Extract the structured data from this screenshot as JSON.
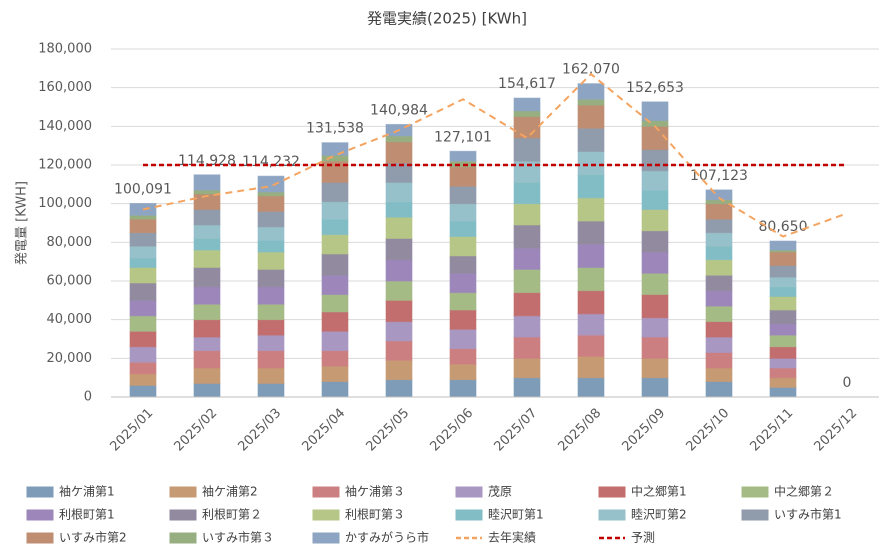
{
  "chart_data": {
    "type": "stacked-bar",
    "title": "発電実績(2025) [KWh]",
    "y_label": "発電量 [KWH]",
    "categories": [
      "2025/01",
      "2025/02",
      "2025/03",
      "2025/04",
      "2025/05",
      "2025/06",
      "2025/07",
      "2025/08",
      "2025/09",
      "2025/10",
      "2025/11",
      "2025/12"
    ],
    "ylim": [
      0,
      180000
    ],
    "yticks": [
      0,
      {
        "value": 20000,
        "label": "20,000"
      },
      {
        "value": 40000,
        "label": "40,000"
      },
      {
        "value": 60000,
        "label": "60,000"
      },
      {
        "value": 80000,
        "label": "80,000"
      },
      {
        "value": 100000,
        "label": "100,000"
      },
      {
        "value": 120000,
        "label": "120,000"
      },
      {
        "value": 140000,
        "label": "140,000"
      },
      {
        "value": 160000,
        "label": "160,000"
      },
      {
        "value": 180000,
        "label": "180,000"
      }
    ],
    "grid": true,
    "series": [
      {
        "name": "袖ケ浦第1",
        "color": "#9dc3e6",
        "values": [
          6000,
          7000,
          7000,
          8000,
          9000,
          9000,
          10000,
          10000,
          10000,
          8000,
          5000,
          0
        ]
      },
      {
        "name": "袖ケ浦第2",
        "color": "#f8c08f",
        "values": [
          6000,
          8000,
          8000,
          8000,
          10000,
          8000,
          10000,
          11000,
          10000,
          7000,
          5000,
          0
        ]
      },
      {
        "name": "袖ケ浦第３",
        "color": "#ff9fa0",
        "values": [
          6000,
          9000,
          9000,
          8000,
          10000,
          8000,
          11000,
          11000,
          11000,
          8000,
          5000,
          0
        ]
      },
      {
        "name": "茂原",
        "color": "#d2bdf0",
        "values": [
          8000,
          7000,
          8000,
          10000,
          10000,
          10000,
          11000,
          11000,
          10000,
          8000,
          5000,
          0
        ]
      },
      {
        "name": "中之郷第1",
        "color": "#f28a8a",
        "values": [
          8000,
          9000,
          8000,
          10000,
          11000,
          10000,
          12000,
          12000,
          12000,
          8000,
          6000,
          0
        ]
      },
      {
        "name": "中之郷第２",
        "color": "#cdeaa8",
        "values": [
          8000,
          8000,
          8000,
          9000,
          10000,
          9000,
          12000,
          12000,
          11000,
          8000,
          6000,
          0
        ]
      },
      {
        "name": "利根町第1",
        "color": "#c3a8e8",
        "values": [
          8000,
          9000,
          9000,
          10000,
          11000,
          10000,
          11000,
          12000,
          11000,
          8000,
          6000,
          0
        ]
      },
      {
        "name": "利根町第２",
        "color": "#b6adc6",
        "values": [
          9000,
          10000,
          9000,
          11000,
          11000,
          9000,
          12000,
          12000,
          11000,
          8000,
          7000,
          0
        ]
      },
      {
        "name": "利根町第３",
        "color": "#e4f7a8",
        "values": [
          8000,
          9000,
          9000,
          10000,
          11000,
          10000,
          11000,
          12000,
          11000,
          8000,
          7000,
          0
        ]
      },
      {
        "name": "睦沢町第1",
        "color": "#a3ecf7",
        "values": [
          5000,
          6000,
          6000,
          8000,
          8000,
          8000,
          11000,
          12000,
          10000,
          7000,
          5000,
          0
        ]
      },
      {
        "name": "睦沢町第2",
        "color": "#bdf1fc",
        "values": [
          6000,
          7000,
          7000,
          9000,
          10000,
          9000,
          11000,
          12000,
          10000,
          7000,
          5000,
          0
        ]
      },
      {
        "name": "いすみ市第1",
        "color": "#b4c2d6",
        "values": [
          7000,
          8000,
          8000,
          10000,
          10000,
          9000,
          12000,
          12000,
          11000,
          7000,
          6000,
          0
        ]
      },
      {
        "name": "いすみ市第2",
        "color": "#eeb08e",
        "values": [
          7000,
          8000,
          8000,
          11000,
          11000,
          10000,
          11000,
          12000,
          12000,
          8000,
          7000,
          0
        ]
      },
      {
        "name": "いすみ市第３",
        "color": "#bcd9a0",
        "values": [
          2000,
          2000,
          2000,
          3000,
          3000,
          3000,
          3000,
          3000,
          3000,
          2000,
          1000,
          0
        ]
      },
      {
        "name": "かすみがうら市",
        "color": "#b0cdf2",
        "values": [
          6091,
          7928,
          8232,
          6538,
          5984,
          5101,
          6617,
          8070,
          9653,
          5123,
          4650,
          0
        ]
      }
    ],
    "totals": [
      100091,
      114928,
      114232,
      131538,
      140984,
      127101,
      154617,
      162070,
      152653,
      107123,
      80650,
      0
    ],
    "total_labels": [
      "100,091",
      "114,928",
      "114,232",
      "131,538",
      "140,984",
      "127,101",
      "154,617",
      "162,070",
      "152,653",
      "107,123",
      "80,650",
      "0"
    ],
    "lines": [
      {
        "name": "去年実績",
        "color": "#f4a460",
        "values": [
          97000,
          104000,
          109000,
          125000,
          138000,
          154000,
          134000,
          167000,
          140000,
          103000,
          83000,
          95000
        ]
      },
      {
        "name": "予測",
        "color": "#c00000",
        "values": [
          120000,
          120000,
          120000,
          120000,
          120000,
          120000,
          120000,
          120000,
          120000,
          120000,
          120000,
          120000
        ]
      }
    ]
  }
}
